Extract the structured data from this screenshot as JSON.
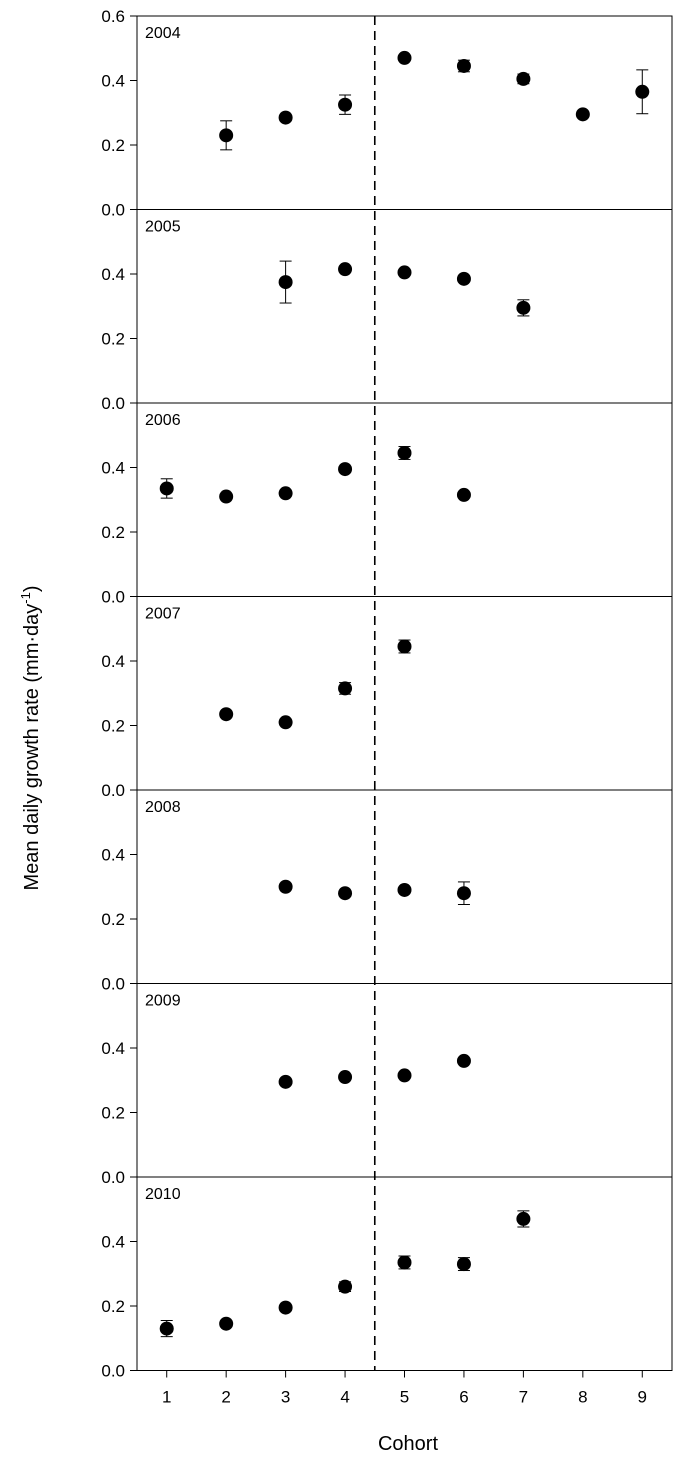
{
  "chart_data": {
    "type": "scatter",
    "ylabel": "Mean daily growth rate (mm·day",
    "ylabel_superscript": "-1",
    "ylabel_close": ")",
    "xlabel": "Cohort",
    "x_ticks": [
      "1",
      "2",
      "3",
      "4",
      "5",
      "6",
      "7",
      "8",
      "9"
    ],
    "xlim": [
      0.5,
      9.5
    ],
    "ylim": [
      0,
      0.6
    ],
    "divider_x": 4.5,
    "marker_color": "#000000",
    "grid": false,
    "panels": [
      {
        "label": "2004",
        "y_ticks": [
          "0.0",
          "0.2",
          "0.4",
          "0.6"
        ],
        "points": [
          {
            "x": 2,
            "y": 0.23,
            "err": 0.045
          },
          {
            "x": 3,
            "y": 0.285,
            "err": 0.0
          },
          {
            "x": 4,
            "y": 0.325,
            "err": 0.03
          },
          {
            "x": 5,
            "y": 0.47,
            "err": 0.0
          },
          {
            "x": 6,
            "y": 0.445,
            "err": 0.018
          },
          {
            "x": 7,
            "y": 0.405,
            "err": 0.015
          },
          {
            "x": 8,
            "y": 0.295,
            "err": 0.0
          },
          {
            "x": 9,
            "y": 0.365,
            "err": 0.068
          }
        ]
      },
      {
        "label": "2005",
        "y_ticks": [
          "0.0",
          "0.2",
          "0.4"
        ],
        "points": [
          {
            "x": 3,
            "y": 0.375,
            "err": 0.065
          },
          {
            "x": 4,
            "y": 0.415,
            "err": 0.0
          },
          {
            "x": 5,
            "y": 0.405,
            "err": 0.0
          },
          {
            "x": 6,
            "y": 0.385,
            "err": 0.0
          },
          {
            "x": 7,
            "y": 0.295,
            "err": 0.025
          }
        ]
      },
      {
        "label": "2006",
        "y_ticks": [
          "0.0",
          "0.2",
          "0.4"
        ],
        "points": [
          {
            "x": 1,
            "y": 0.335,
            "err": 0.03
          },
          {
            "x": 2,
            "y": 0.31,
            "err": 0.0
          },
          {
            "x": 3,
            "y": 0.32,
            "err": 0.0
          },
          {
            "x": 4,
            "y": 0.395,
            "err": 0.0
          },
          {
            "x": 5,
            "y": 0.445,
            "err": 0.02
          },
          {
            "x": 6,
            "y": 0.315,
            "err": 0.0
          }
        ]
      },
      {
        "label": "2007",
        "y_ticks": [
          "0.0",
          "0.2",
          "0.4"
        ],
        "points": [
          {
            "x": 2,
            "y": 0.235,
            "err": 0.0
          },
          {
            "x": 3,
            "y": 0.21,
            "err": 0.0
          },
          {
            "x": 4,
            "y": 0.315,
            "err": 0.018
          },
          {
            "x": 5,
            "y": 0.445,
            "err": 0.02
          }
        ]
      },
      {
        "label": "2008",
        "y_ticks": [
          "0.0",
          "0.2",
          "0.4"
        ],
        "points": [
          {
            "x": 3,
            "y": 0.3,
            "err": 0.0
          },
          {
            "x": 4,
            "y": 0.28,
            "err": 0.0
          },
          {
            "x": 5,
            "y": 0.29,
            "err": 0.0
          },
          {
            "x": 6,
            "y": 0.28,
            "err": 0.035
          }
        ]
      },
      {
        "label": "2009",
        "y_ticks": [
          "0.0",
          "0.2",
          "0.4"
        ],
        "points": [
          {
            "x": 3,
            "y": 0.295,
            "err": 0.0
          },
          {
            "x": 4,
            "y": 0.31,
            "err": 0.0
          },
          {
            "x": 5,
            "y": 0.315,
            "err": 0.0
          },
          {
            "x": 6,
            "y": 0.36,
            "err": 0.0
          }
        ]
      },
      {
        "label": "2010",
        "y_ticks": [
          "0.0",
          "0.2",
          "0.4"
        ],
        "points": [
          {
            "x": 1,
            "y": 0.13,
            "err": 0.025
          },
          {
            "x": 2,
            "y": 0.145,
            "err": 0.0
          },
          {
            "x": 3,
            "y": 0.195,
            "err": 0.0
          },
          {
            "x": 4,
            "y": 0.26,
            "err": 0.015
          },
          {
            "x": 5,
            "y": 0.335,
            "err": 0.02
          },
          {
            "x": 6,
            "y": 0.33,
            "err": 0.02
          },
          {
            "x": 7,
            "y": 0.47,
            "err": 0.025
          }
        ]
      }
    ]
  }
}
